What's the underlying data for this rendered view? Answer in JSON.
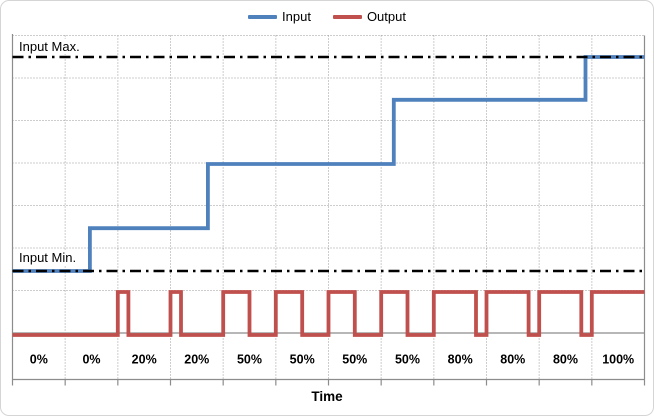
{
  "chart_data": {
    "type": "line",
    "title": "",
    "xlabel": "Time",
    "ylabel": "",
    "legend_position": "top",
    "categories": [
      "0%",
      "0%",
      "20%",
      "20%",
      "50%",
      "50%",
      "50%",
      "50%",
      "80%",
      "80%",
      "80%",
      "100%"
    ],
    "grid": {
      "h_divisions": 7,
      "v_divisions": 12,
      "style": "dotted"
    },
    "series": [
      {
        "name": "Input",
        "color": "#4F81BD",
        "style": "step",
        "steps": [
          {
            "x_cell": 0.0,
            "level_pct": 0
          },
          {
            "x_cell": 1.47,
            "level_pct": 20
          },
          {
            "x_cell": 3.71,
            "level_pct": 50
          },
          {
            "x_cell": 7.24,
            "level_pct": 80
          },
          {
            "x_cell": 10.88,
            "level_pct": 100
          }
        ]
      },
      {
        "name": "Output",
        "color": "#C0504D",
        "style": "pwm",
        "duty_cycle_pct": [
          0,
          0,
          20,
          20,
          50,
          50,
          50,
          50,
          80,
          80,
          80,
          100
        ]
      }
    ],
    "reference_lines": [
      {
        "label": "Input Max.",
        "level_pct": 100,
        "style": "dash-dot",
        "color": "#000000"
      },
      {
        "label": "Input Min.",
        "level_pct": 0,
        "style": "dash-dot",
        "color": "#000000"
      }
    ]
  },
  "colors": {
    "gridline": "#9b9b9b",
    "axis": "#8c8c8c",
    "text": "#000000",
    "background": "#ffffff"
  }
}
